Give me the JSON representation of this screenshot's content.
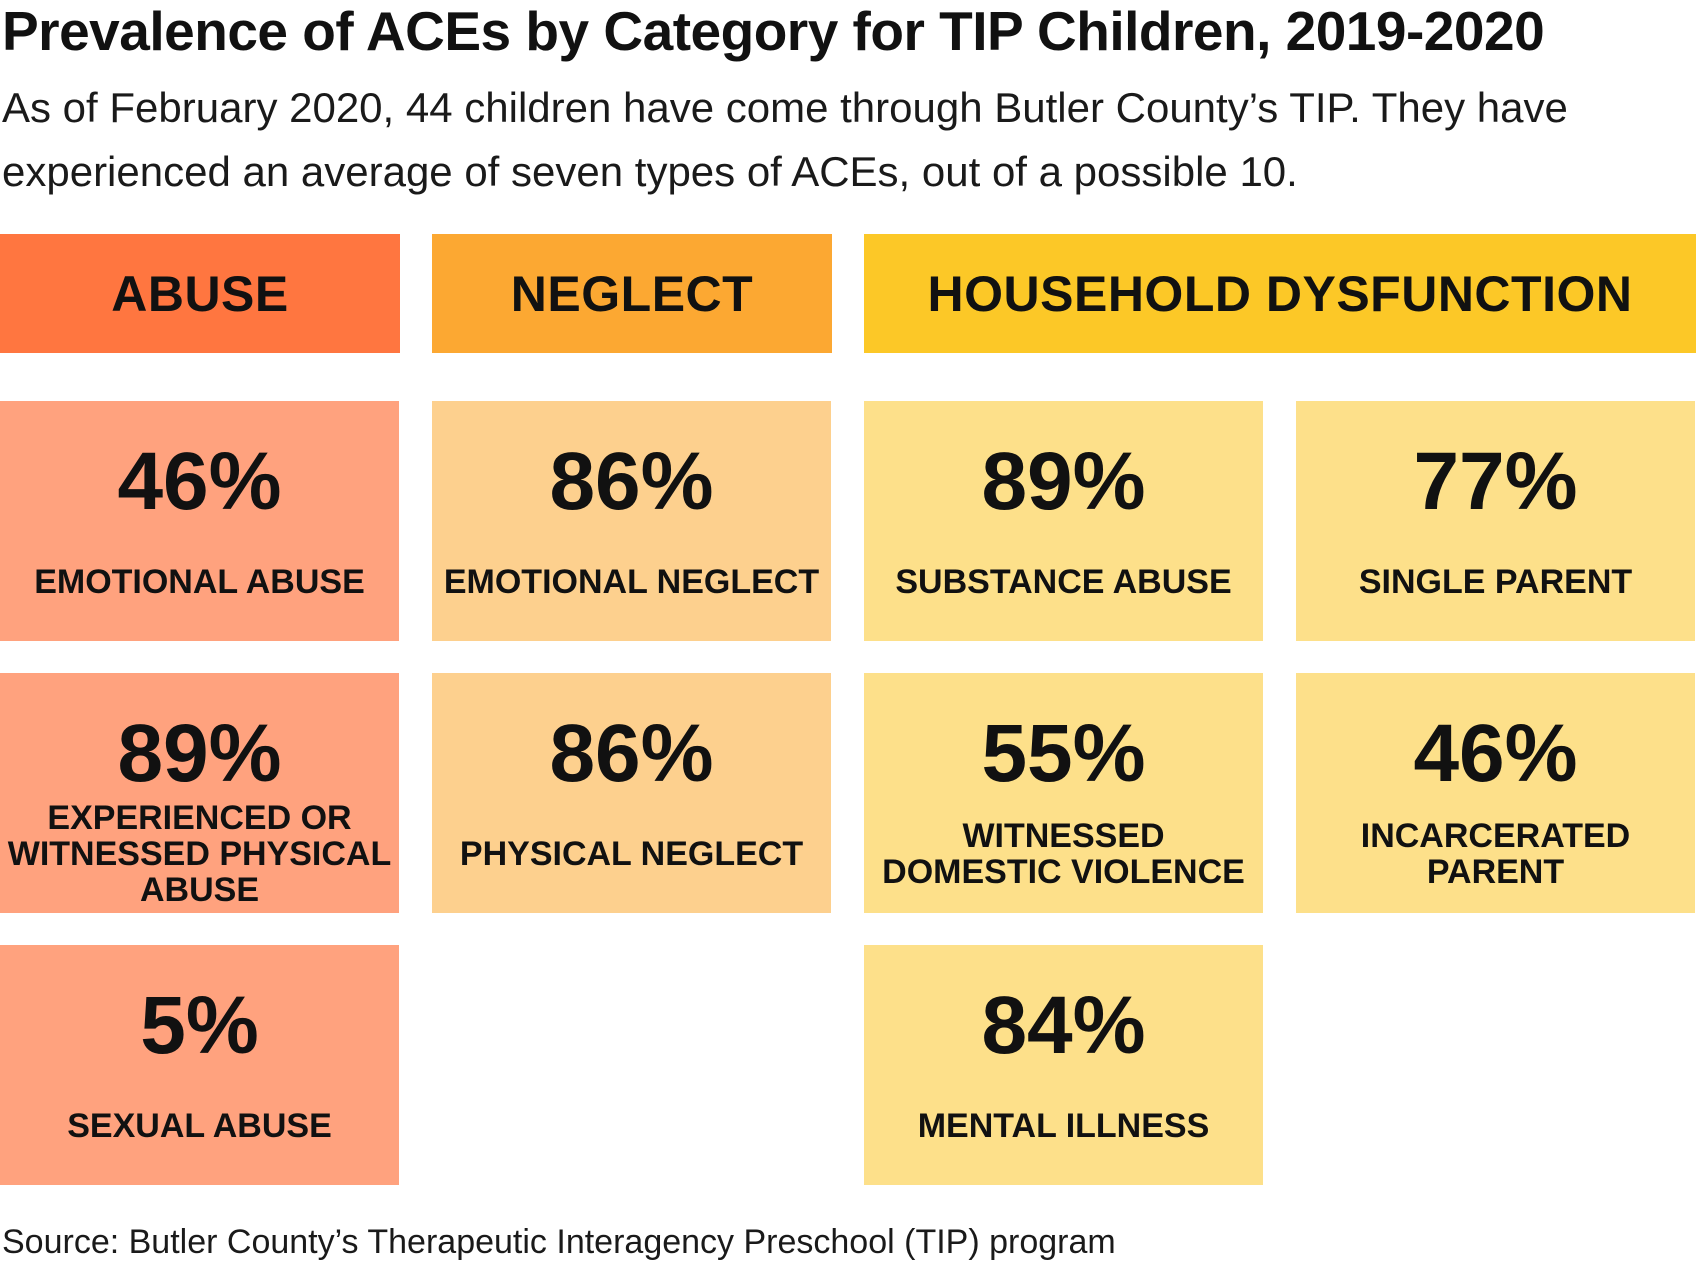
{
  "title": "Prevalence of ACEs by Category for TIP Children, 2019-2020",
  "subtitle": "As of February 2020, 44 children have come through Butler County’s TIP. They have experienced an average of seven types of ACEs, out of a possible 10.",
  "source": "Source: Butler County’s Therapeutic Interagency Preschool (TIP) program",
  "colors": {
    "abuse_header": "#ff7640",
    "abuse_tile": "#ffa27e",
    "neglect_header": "#fca832",
    "neglect_tile": "#fdd08e",
    "household_header": "#fcc827",
    "household_tile": "#fde08a"
  },
  "chart_data": {
    "type": "table",
    "unit": "%",
    "categories": [
      {
        "name": "ABUSE",
        "items": [
          {
            "label": "EMOTIONAL ABUSE",
            "value": 46
          },
          {
            "label": "EXPERIENCED OR WITNESSED PHYSICAL ABUSE",
            "value": 89
          },
          {
            "label": "SEXUAL ABUSE",
            "value": 5
          }
        ]
      },
      {
        "name": "NEGLECT",
        "items": [
          {
            "label": "EMOTIONAL NEGLECT",
            "value": 86
          },
          {
            "label": "PHYSICAL NEGLECT",
            "value": 86
          }
        ]
      },
      {
        "name": "HOUSEHOLD DYSFUNCTION",
        "items": [
          {
            "label": "SUBSTANCE ABUSE",
            "value": 89
          },
          {
            "label": "SINGLE PARENT",
            "value": 77
          },
          {
            "label": "WITNESSED DOMESTIC VIOLENCE",
            "value": 55
          },
          {
            "label": "INCARCERATED PARENT",
            "value": 46
          },
          {
            "label": "MENTAL ILLNESS",
            "value": 84
          }
        ]
      }
    ]
  }
}
